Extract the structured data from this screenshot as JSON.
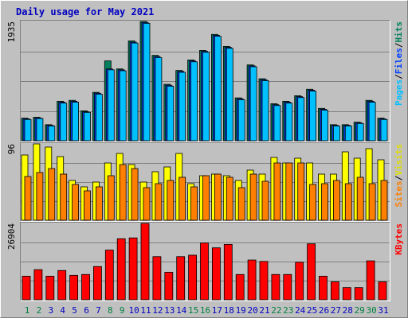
{
  "title": "Daily usage for May 2021",
  "legend_separator": "/",
  "chart_data": [
    {
      "type": "bar",
      "ylim": [
        0,
        1935
      ],
      "yticks": [
        1935
      ],
      "series": [
        {
          "name": "Hits",
          "color": "#00805c",
          "values": [
            366,
            380,
            260,
            640,
            655,
            485,
            785,
            1295,
            1165,
            1620,
            1935,
            1385,
            915,
            1140,
            1310,
            1465,
            1725,
            1530,
            695,
            1230,
            1005,
            600,
            640,
            730,
            835,
            525,
            260,
            260,
            300,
            655,
            366
          ]
        },
        {
          "name": "Files",
          "color": "#0040ff",
          "values": [
            355,
            370,
            250,
            625,
            640,
            470,
            770,
            1165,
            1150,
            1600,
            1920,
            1365,
            900,
            1125,
            1295,
            1450,
            1710,
            1515,
            680,
            1215,
            990,
            585,
            625,
            715,
            820,
            510,
            250,
            250,
            290,
            640,
            355
          ]
        },
        {
          "name": "Pages",
          "color": "#00c0ff",
          "values": [
            345,
            360,
            240,
            610,
            625,
            460,
            755,
            1150,
            1135,
            1585,
            1905,
            1350,
            885,
            1110,
            1280,
            1435,
            1695,
            1500,
            665,
            1200,
            975,
            570,
            610,
            700,
            805,
            495,
            240,
            240,
            280,
            625,
            345
          ]
        }
      ]
    },
    {
      "type": "bar",
      "ylim": [
        0,
        96
      ],
      "yticks": [
        96
      ],
      "series": [
        {
          "name": "Visits",
          "color": "#ffff00",
          "values": [
            82,
            96,
            92,
            80,
            50,
            42,
            48,
            72,
            84,
            70,
            48,
            61,
            67,
            84,
            46,
            56,
            58,
            56,
            50,
            63,
            58,
            79,
            72,
            78,
            72,
            58,
            58,
            86,
            78,
            90,
            76
          ]
        },
        {
          "name": "Sites",
          "color": "#ff8000",
          "values": [
            55,
            60,
            65,
            58,
            45,
            37,
            42,
            56,
            70,
            65,
            41,
            46,
            50,
            54,
            42,
            56,
            58,
            54,
            41,
            58,
            49,
            72,
            72,
            72,
            45,
            46,
            50,
            46,
            54,
            46,
            50
          ]
        }
      ]
    },
    {
      "type": "bar",
      "ylim": [
        0,
        26904
      ],
      "yticks": [
        26904
      ],
      "categories": [
        "1",
        "2",
        "3",
        "4",
        "5",
        "6",
        "7",
        "8",
        "9",
        "10",
        "11",
        "12",
        "13",
        "14",
        "15",
        "16",
        "17",
        "18",
        "19",
        "20",
        "21",
        "22",
        "23",
        "24",
        "25",
        "26",
        "27",
        "28",
        "29",
        "30",
        "31"
      ],
      "category_colors": [
        "#008040",
        "#008040",
        "#0000c0",
        "#0000c0",
        "#0000c0",
        "#0000c0",
        "#0000c0",
        "#008040",
        "#008040",
        "#0000c0",
        "#0000c0",
        "#0000c0",
        "#0000c0",
        "#0000c0",
        "#008040",
        "#008040",
        "#0000c0",
        "#0000c0",
        "#0000c0",
        "#0000c0",
        "#0000c0",
        "#008040",
        "#008040",
        "#0000c0",
        "#0000c0",
        "#0000c0",
        "#0000c0",
        "#0000c0",
        "#008040",
        "#008040",
        "#0000c0"
      ],
      "series": [
        {
          "name": "KBytes",
          "color": "#ff0000",
          "values": [
            8300,
            10600,
            8300,
            10300,
            8600,
            8900,
            11700,
            17500,
            21500,
            21800,
            26904,
            15200,
            9700,
            15200,
            15700,
            20000,
            18300,
            19500,
            8900,
            14000,
            13500,
            8900,
            8900,
            13200,
            19700,
            8300,
            6300,
            4300,
            4300,
            13700,
            6300
          ]
        }
      ]
    }
  ]
}
